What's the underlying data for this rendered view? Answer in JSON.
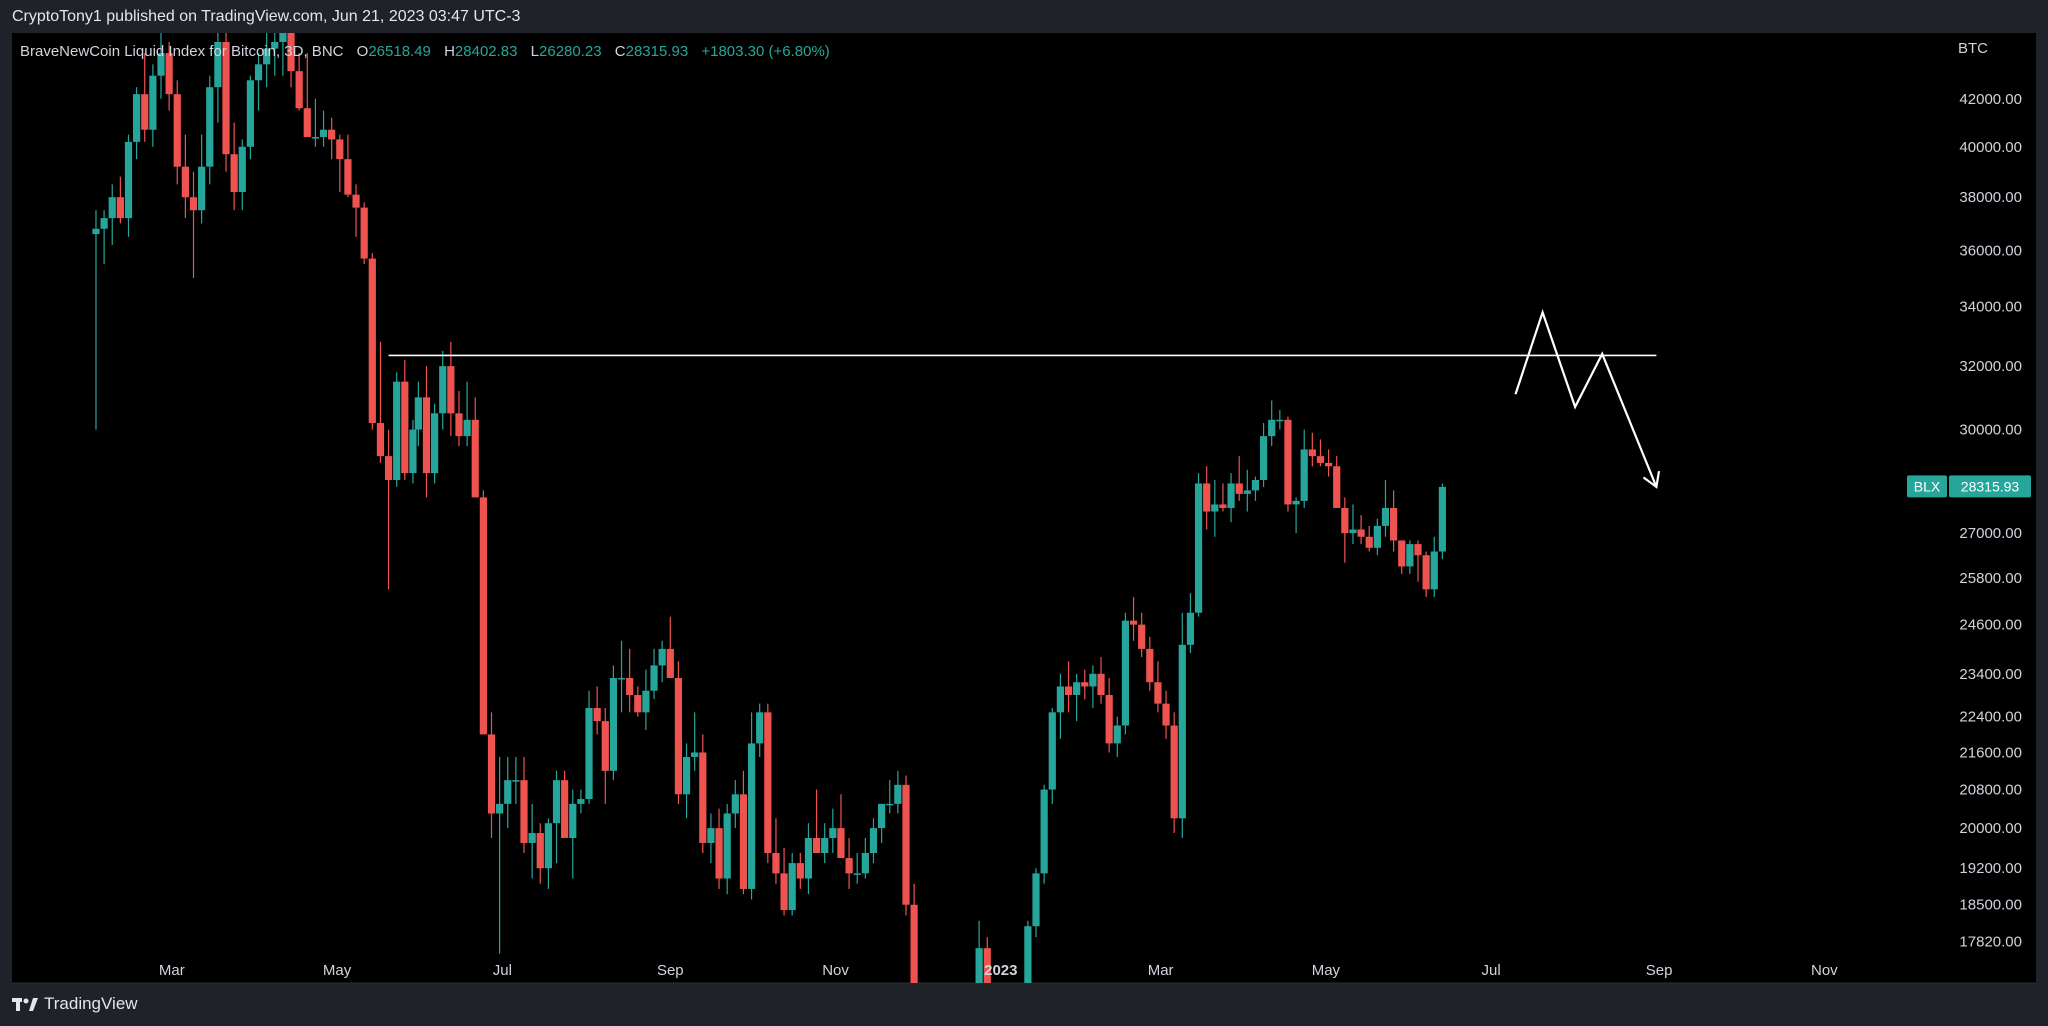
{
  "header": {
    "published": "CryptoTony1 published on TradingView.com, Jun 21, 2023 03:47 UTC-3"
  },
  "footer": {
    "brand": "TradingView"
  },
  "legend": {
    "symbol": "BraveNewCoin Liquid Index for Bitcoin, 3D, BNC",
    "open_label": "O",
    "open": "26518.49",
    "high_label": "H",
    "high": "28402.83",
    "low_label": "L",
    "low": "26280.23",
    "close_label": "C",
    "close": "28315.93",
    "change": "+1803.30 (+6.80%)"
  },
  "chart_data": {
    "type": "candlestick",
    "currency": "BTC",
    "y_axis": {
      "scale": "log",
      "ylim": [
        17400,
        44500
      ],
      "ticks": [
        "42000.00",
        "40000.00",
        "38000.00",
        "36000.00",
        "34000.00",
        "32000.00",
        "30000.00",
        "27000.00",
        "25800.00",
        "24600.00",
        "23400.00",
        "22400.00",
        "21600.00",
        "20800.00",
        "20000.00",
        "19200.00",
        "18500.00",
        "17820.00"
      ]
    },
    "x_axis": {
      "ticks": [
        "Mar",
        "May",
        "Jul",
        "Sep",
        "Nov",
        "2023",
        "Mar",
        "May",
        "Jul",
        "Sep",
        "Nov"
      ]
    },
    "price_label": {
      "symbol": "BLX",
      "value": "28315.93"
    },
    "resistance_level": 32350,
    "projection_path": [
      {
        "date": "2023-07-10",
        "price": 31100
      },
      {
        "date": "2023-07-20",
        "price": 33800
      },
      {
        "date": "2023-08-01",
        "price": 30700
      },
      {
        "date": "2023-08-11",
        "price": 32400
      },
      {
        "date": "2023-08-31",
        "price": 28300
      }
    ],
    "candles": [
      [
        "2022-02-01",
        36600,
        37500,
        30000,
        36800
      ],
      [
        "2022-02-04",
        36800,
        37500,
        35500,
        37200
      ],
      [
        "2022-02-07",
        37200,
        38500,
        36200,
        38000
      ],
      [
        "2022-02-10",
        38000,
        38800,
        37000,
        37200
      ],
      [
        "2022-02-13",
        37200,
        40500,
        36500,
        40200
      ],
      [
        "2022-02-16",
        40200,
        42500,
        39500,
        42200
      ],
      [
        "2022-02-19",
        42200,
        44000,
        40200,
        40700
      ],
      [
        "2022-02-22",
        40700,
        43500,
        40000,
        43000
      ],
      [
        "2022-02-25",
        43000,
        45000,
        42000,
        44000
      ],
      [
        "2022-02-28",
        44000,
        44500,
        41500,
        42200
      ],
      [
        "2022-03-03",
        42200,
        42800,
        38500,
        39200
      ],
      [
        "2022-03-06",
        39200,
        40500,
        37200,
        38000
      ],
      [
        "2022-03-09",
        38000,
        39000,
        35000,
        37500
      ],
      [
        "2022-03-12",
        37500,
        40500,
        37000,
        39200
      ],
      [
        "2022-03-15",
        39200,
        43000,
        38500,
        42500
      ],
      [
        "2022-03-18",
        42500,
        45000,
        41000,
        44500
      ],
      [
        "2022-03-21",
        44500,
        45000,
        39000,
        39700
      ],
      [
        "2022-03-24",
        39700,
        41000,
        37500,
        38200
      ],
      [
        "2022-03-27",
        38200,
        40300,
        37500,
        40000
      ],
      [
        "2022-03-30",
        40000,
        43000,
        39500,
        42800
      ],
      [
        "2022-04-02",
        42800,
        44000,
        41500,
        43500
      ],
      [
        "2022-04-05",
        43500,
        45000,
        42500,
        44200
      ],
      [
        "2022-04-08",
        44200,
        45000,
        43000,
        44500
      ],
      [
        "2022-04-11",
        44500,
        45000,
        43000,
        45000
      ],
      [
        "2022-04-14",
        45000,
        45000,
        42500,
        43200
      ],
      [
        "2022-04-17",
        43200,
        44000,
        41500,
        41600
      ],
      [
        "2022-04-20",
        41600,
        44000,
        40500,
        40400
      ],
      [
        "2022-04-23",
        40400,
        42000,
        40000,
        40400
      ],
      [
        "2022-04-26",
        40400,
        41500,
        40000,
        40700
      ],
      [
        "2022-04-29",
        40700,
        41200,
        39500,
        40300
      ],
      [
        "2022-05-02",
        40300,
        40500,
        38200,
        39500
      ],
      [
        "2022-05-05",
        39500,
        40500,
        38000,
        38100
      ],
      [
        "2022-05-08",
        38100,
        38500,
        36500,
        37600
      ],
      [
        "2022-05-11",
        37600,
        37800,
        35500,
        35700
      ],
      [
        "2022-05-14",
        35700,
        35900,
        30000,
        30200
      ],
      [
        "2022-05-17",
        30200,
        32800,
        29000,
        29200
      ],
      [
        "2022-05-20",
        29200,
        30000,
        25500,
        28500
      ],
      [
        "2022-05-23",
        28500,
        31800,
        28300,
        31500
      ],
      [
        "2022-05-26",
        31500,
        32200,
        28500,
        28700
      ],
      [
        "2022-05-29",
        28700,
        30300,
        28400,
        30000
      ],
      [
        "2022-05-31",
        30000,
        31500,
        29500,
        31000
      ],
      [
        "2022-06-03",
        31000,
        32000,
        28000,
        28700
      ],
      [
        "2022-06-06",
        28700,
        30800,
        28400,
        30500
      ],
      [
        "2022-06-09",
        30500,
        32500,
        30000,
        32000
      ],
      [
        "2022-06-12",
        32000,
        32800,
        29800,
        30500
      ],
      [
        "2022-06-15",
        30500,
        31200,
        29500,
        29800
      ],
      [
        "2022-06-18",
        29800,
        31500,
        29500,
        30300
      ],
      [
        "2022-06-21",
        30300,
        31000,
        28000,
        28000
      ],
      [
        "2022-06-24",
        28000,
        28200,
        22200,
        22000
      ],
      [
        "2022-06-27",
        22000,
        22500,
        19800,
        20300
      ],
      [
        "2022-06-30",
        20300,
        21500,
        17600,
        20500
      ],
      [
        "2022-07-03",
        20500,
        21500,
        20000,
        21000
      ],
      [
        "2022-07-06",
        21000,
        21500,
        20500,
        21000
      ],
      [
        "2022-07-09",
        21000,
        21500,
        19500,
        19700
      ],
      [
        "2022-07-12",
        19700,
        20500,
        19000,
        19900
      ],
      [
        "2022-07-15",
        19900,
        20100,
        18900,
        19200
      ],
      [
        "2022-07-18",
        19200,
        20200,
        18800,
        20100
      ],
      [
        "2022-07-21",
        20100,
        21200,
        19300,
        21000
      ],
      [
        "2022-07-24",
        21000,
        21200,
        19800,
        19800
      ],
      [
        "2022-07-27",
        19800,
        20800,
        19000,
        20500
      ],
      [
        "2022-07-30",
        20500,
        20800,
        20300,
        20600
      ],
      [
        "2022-08-02",
        20600,
        23000,
        20500,
        22600
      ],
      [
        "2022-08-05",
        22600,
        23100,
        22000,
        22300
      ],
      [
        "2022-08-08",
        22300,
        22600,
        20500,
        21200
      ],
      [
        "2022-08-11",
        21200,
        23600,
        21000,
        23300
      ],
      [
        "2022-08-14",
        23300,
        24200,
        22500,
        23300
      ],
      [
        "2022-08-17",
        23300,
        24000,
        22500,
        22900
      ],
      [
        "2022-08-20",
        22900,
        23100,
        22400,
        22500
      ],
      [
        "2022-08-23",
        22500,
        23500,
        22100,
        23000
      ],
      [
        "2022-08-26",
        23000,
        24000,
        22800,
        23600
      ],
      [
        "2022-08-29",
        23600,
        24200,
        23200,
        24000
      ],
      [
        "2022-09-01",
        24000,
        24800,
        23300,
        23300
      ],
      [
        "2022-09-04",
        23300,
        23700,
        20500,
        20700
      ],
      [
        "2022-09-07",
        20700,
        21800,
        20200,
        21500
      ],
      [
        "2022-09-10",
        21500,
        22500,
        21200,
        21600
      ],
      [
        "2022-09-13",
        21600,
        22000,
        19500,
        19700
      ],
      [
        "2022-09-16",
        19700,
        20300,
        19300,
        20000
      ],
      [
        "2022-09-19",
        20000,
        20400,
        18800,
        19000
      ],
      [
        "2022-09-22",
        19000,
        20500,
        18700,
        20300
      ],
      [
        "2022-09-25",
        20300,
        21000,
        20000,
        20700
      ],
      [
        "2022-09-28",
        20700,
        21200,
        18700,
        18800
      ],
      [
        "2022-10-01",
        18800,
        22500,
        18600,
        21800
      ],
      [
        "2022-10-04",
        21800,
        22700,
        21500,
        22500
      ],
      [
        "2022-10-07",
        22500,
        22700,
        19300,
        19500
      ],
      [
        "2022-10-10",
        19500,
        20200,
        18900,
        19100
      ],
      [
        "2022-10-13",
        19100,
        19600,
        18300,
        18400
      ],
      [
        "2022-10-16",
        18400,
        19500,
        18300,
        19300
      ],
      [
        "2022-10-19",
        19300,
        19500,
        18800,
        19000
      ],
      [
        "2022-10-22",
        19000,
        20100,
        18700,
        19800
      ],
      [
        "2022-10-25",
        19800,
        20800,
        19500,
        19500
      ],
      [
        "2022-10-28",
        19500,
        20100,
        19300,
        19800
      ],
      [
        "2022-10-31",
        19800,
        20400,
        19500,
        20000
      ],
      [
        "2022-11-03",
        20000,
        20700,
        19600,
        19400
      ],
      [
        "2022-11-06",
        19400,
        19800,
        18800,
        19100
      ],
      [
        "2022-11-09",
        19100,
        19500,
        18900,
        19100
      ],
      [
        "2022-11-12",
        19100,
        19800,
        19000,
        19500
      ],
      [
        "2022-11-15",
        19500,
        20200,
        19300,
        20000
      ],
      [
        "2022-11-18",
        20000,
        20500,
        19700,
        20500
      ],
      [
        "2022-11-21",
        20500,
        21000,
        20300,
        20500
      ],
      [
        "2022-11-24",
        20500,
        21200,
        20300,
        20900
      ],
      [
        "2022-11-27",
        20900,
        21100,
        18300,
        18500
      ],
      [
        "2022-11-30",
        18500,
        18900,
        15800,
        16200
      ],
      [
        "2022-12-24",
        17000,
        18200,
        16600,
        17700
      ],
      [
        "2022-12-27",
        17700,
        17900,
        16800,
        17000
      ],
      [
        "2023-01-11",
        16800,
        18200,
        16600,
        18100
      ],
      [
        "2023-01-14",
        18100,
        19200,
        17900,
        19100
      ],
      [
        "2023-01-17",
        19100,
        20900,
        18900,
        20800
      ],
      [
        "2023-01-20",
        20800,
        22600,
        20500,
        22500
      ],
      [
        "2023-01-23",
        22500,
        23400,
        21900,
        23100
      ],
      [
        "2023-01-26",
        23100,
        23700,
        22500,
        22900
      ],
      [
        "2023-01-29",
        22900,
        23400,
        22300,
        23200
      ],
      [
        "2023-02-01",
        23200,
        23500,
        22800,
        23100
      ],
      [
        "2023-02-04",
        23100,
        23600,
        22600,
        23400
      ],
      [
        "2023-02-07",
        23400,
        23800,
        22700,
        22900
      ],
      [
        "2023-02-10",
        22900,
        23300,
        21600,
        21800
      ],
      [
        "2023-02-13",
        21800,
        22400,
        21500,
        22200
      ],
      [
        "2023-02-16",
        22200,
        24900,
        22000,
        24700
      ],
      [
        "2023-02-19",
        24700,
        25300,
        24200,
        24600
      ],
      [
        "2023-02-22",
        24600,
        24900,
        23800,
        24000
      ],
      [
        "2023-02-25",
        24000,
        24300,
        23000,
        23200
      ],
      [
        "2023-02-28",
        23200,
        23700,
        22500,
        22700
      ],
      [
        "2023-03-03",
        22700,
        23000,
        21900,
        22200
      ],
      [
        "2023-03-06",
        22200,
        22500,
        19900,
        20200
      ],
      [
        "2023-03-09",
        20200,
        24900,
        19800,
        24100
      ],
      [
        "2023-03-12",
        24100,
        25400,
        23900,
        24900
      ],
      [
        "2023-03-15",
        24900,
        28700,
        24800,
        28400
      ],
      [
        "2023-03-18",
        28400,
        28900,
        27100,
        27600
      ],
      [
        "2023-03-21",
        27600,
        28500,
        26900,
        27800
      ],
      [
        "2023-03-24",
        27800,
        28400,
        27600,
        27700
      ],
      [
        "2023-03-27",
        27700,
        28700,
        27300,
        28400
      ],
      [
        "2023-03-30",
        28400,
        29200,
        27900,
        28100
      ],
      [
        "2023-04-02",
        28100,
        28800,
        27600,
        28200
      ],
      [
        "2023-04-05",
        28200,
        28600,
        27900,
        28500
      ],
      [
        "2023-04-08",
        28500,
        30200,
        28300,
        29800
      ],
      [
        "2023-04-11",
        29800,
        30900,
        29500,
        30300
      ],
      [
        "2023-04-14",
        30300,
        30600,
        30000,
        30300
      ],
      [
        "2023-04-17",
        30300,
        30400,
        27600,
        27800
      ],
      [
        "2023-04-20",
        27800,
        28000,
        27000,
        27900
      ],
      [
        "2023-04-23",
        27900,
        30000,
        27700,
        29400
      ],
      [
        "2023-04-26",
        29400,
        29900,
        28900,
        29200
      ],
      [
        "2023-04-29",
        29200,
        29700,
        28900,
        29000
      ],
      [
        "2023-05-02",
        29000,
        29400,
        28600,
        28900
      ],
      [
        "2023-05-05",
        28900,
        29200,
        27800,
        27700
      ],
      [
        "2023-05-08",
        27700,
        28000,
        26200,
        27000
      ],
      [
        "2023-05-11",
        27000,
        27800,
        26700,
        27100
      ],
      [
        "2023-05-14",
        27100,
        27500,
        26700,
        26900
      ],
      [
        "2023-05-17",
        26900,
        27200,
        26500,
        26600
      ],
      [
        "2023-05-20",
        26600,
        27400,
        26400,
        27200
      ],
      [
        "2023-05-23",
        27200,
        28500,
        26900,
        27700
      ],
      [
        "2023-05-26",
        27700,
        28200,
        26500,
        26800
      ],
      [
        "2023-05-29",
        26800,
        26800,
        25900,
        26100
      ],
      [
        "2023-06-01",
        26100,
        26800,
        25900,
        26700
      ],
      [
        "2023-06-04",
        26700,
        26800,
        25700,
        26400
      ],
      [
        "2023-06-07",
        26400,
        26500,
        25300,
        25500
      ],
      [
        "2023-06-10",
        25500,
        26900,
        25300,
        26500
      ],
      [
        "2023-06-13",
        26500,
        28400,
        26300,
        28300
      ]
    ]
  }
}
